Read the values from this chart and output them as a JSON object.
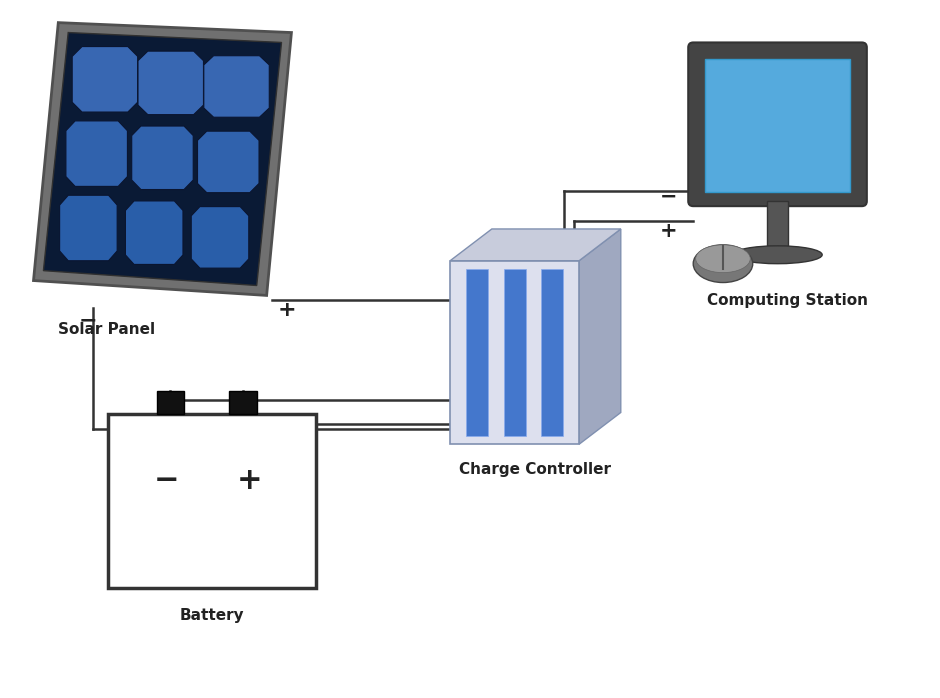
{
  "bg_color": "#ffffff",
  "labels": {
    "solar_panel": "Solar Panel",
    "charge_controller": "Charge Controller",
    "battery": "Battery",
    "computing_station": "Computing Station"
  },
  "label_fontsize": 11,
  "plus_minus_fontsize": 14,
  "wire_color": "#333333",
  "wire_lw": 1.8,
  "solar_blue_light": "#3a7fd4",
  "solar_blue_mid": "#1a55a0",
  "solar_blue_dark": "#0a2a60",
  "solar_dark_bg": "#0a1a35",
  "solar_frame_outer": "#707070",
  "solar_frame_inner": "#505050",
  "battery_body": "#ffffff",
  "battery_outline": "#333333",
  "battery_terminal": "#111111",
  "cc_front": "#dde0ee",
  "cc_side": "#9fa8c0",
  "cc_top": "#c8ccdc",
  "cc_stripe": "#4477cc",
  "cc_stripe_light": "#88aaee",
  "monitor_bezel": "#444444",
  "monitor_screen": "#55aadd",
  "monitor_stand": "#555555",
  "mouse_color": "#666666"
}
